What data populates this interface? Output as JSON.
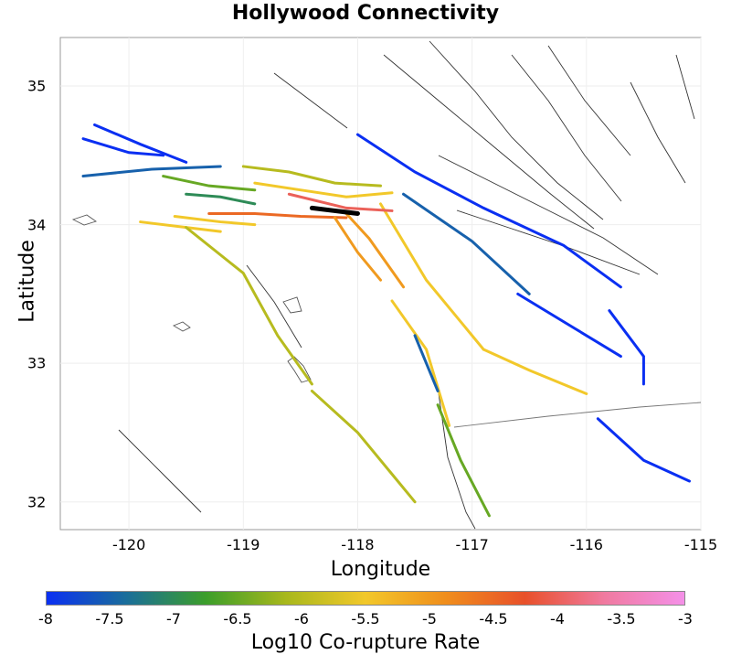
{
  "title": "Hollywood Connectivity",
  "x_label": "Longitude",
  "y_label": "Latitude",
  "x_ticks": [
    "-120",
    "-119",
    "-118",
    "-117",
    "-116",
    "-115"
  ],
  "y_ticks": [
    "35",
    "34",
    "33",
    "32"
  ],
  "colorbar": {
    "label": "Log10 Co-rupture Rate",
    "ticks": [
      "-8",
      "-7.5",
      "-7",
      "-6.5",
      "-6",
      "-5.5",
      "-5",
      "-4.5",
      "-4",
      "-3.5",
      "-3"
    ],
    "colors": [
      "#0a2ff2",
      "#1a6e9a",
      "#3c9e2a",
      "#a8b81c",
      "#f2c82a",
      "#f08e1c",
      "#e8502a",
      "#f07aa0",
      "#f490e8"
    ]
  },
  "map": {
    "lon_range": [
      -120.6,
      -115.0
    ],
    "lat_range": [
      31.8,
      35.35
    ],
    "source_fault": "Hollywood",
    "faults": [
      {
        "lon": [
          -120.3,
          -119.9,
          -119.5
        ],
        "lat": [
          34.72,
          34.58,
          34.45
        ],
        "rate": -8
      },
      {
        "lon": [
          -120.4,
          -120.0,
          -119.7
        ],
        "lat": [
          34.62,
          34.52,
          34.5
        ],
        "rate": -8
      },
      {
        "lon": [
          -120.4,
          -119.8,
          -119.2
        ],
        "lat": [
          34.35,
          34.4,
          34.42
        ],
        "rate": -7.5
      },
      {
        "lon": [
          -119.7,
          -119.3,
          -118.9
        ],
        "lat": [
          34.35,
          34.28,
          34.25
        ],
        "rate": -6.5
      },
      {
        "lon": [
          -119.5,
          -119.2,
          -118.9
        ],
        "lat": [
          34.22,
          34.2,
          34.15
        ],
        "rate": -7
      },
      {
        "lon": [
          -119.0,
          -118.6,
          -118.2,
          -117.8
        ],
        "lat": [
          34.42,
          34.38,
          34.3,
          34.28
        ],
        "rate": -6
      },
      {
        "lon": [
          -118.9,
          -118.5,
          -118.1,
          -117.7
        ],
        "lat": [
          34.3,
          34.25,
          34.2,
          34.23
        ],
        "rate": -5.5
      },
      {
        "lon": [
          -119.3,
          -118.9,
          -118.5,
          -118.1
        ],
        "lat": [
          34.08,
          34.08,
          34.06,
          34.05
        ],
        "rate": -4.5
      },
      {
        "lon": [
          -119.6,
          -119.2,
          -118.9
        ],
        "lat": [
          34.06,
          34.02,
          34.0
        ],
        "rate": -5.5
      },
      {
        "lon": [
          -119.9,
          -119.5,
          -119.2
        ],
        "lat": [
          34.02,
          33.98,
          33.95
        ],
        "rate": -5.5
      },
      {
        "lon": [
          -119.5,
          -119.0,
          -118.7,
          -118.4
        ],
        "lat": [
          33.98,
          33.65,
          33.2,
          32.85
        ],
        "rate": -6
      },
      {
        "lon": [
          -118.4,
          -118.0,
          -117.7,
          -117.5
        ],
        "lat": [
          32.8,
          32.5,
          32.2,
          32.0
        ],
        "rate": -6
      },
      {
        "lon": [
          -118.2,
          -118.0,
          -117.8
        ],
        "lat": [
          34.05,
          33.8,
          33.6
        ],
        "rate": -5
      },
      {
        "lon": [
          -118.1,
          -117.9,
          -117.6
        ],
        "lat": [
          34.08,
          33.9,
          33.55
        ],
        "rate": -5
      },
      {
        "lon": [
          -117.7,
          -117.4,
          -117.2
        ],
        "lat": [
          33.45,
          33.1,
          32.55
        ],
        "rate": -5.5
      },
      {
        "lon": [
          -117.8,
          -117.4,
          -116.9
        ],
        "lat": [
          34.15,
          33.6,
          33.1
        ],
        "rate": -5.5
      },
      {
        "lon": [
          -116.9,
          -116.5,
          -116.0
        ],
        "lat": [
          33.1,
          32.95,
          32.78
        ],
        "rate": -5.5
      },
      {
        "lon": [
          -118.0,
          -117.5,
          -116.9,
          -116.2,
          -115.7
        ],
        "lat": [
          34.65,
          34.38,
          34.12,
          33.85,
          33.55
        ],
        "rate": -8
      },
      {
        "lon": [
          -117.6,
          -117.0,
          -116.5
        ],
        "lat": [
          34.22,
          33.88,
          33.5
        ],
        "rate": -7.5
      },
      {
        "lon": [
          -116.6,
          -116.1,
          -115.7
        ],
        "lat": [
          33.5,
          33.25,
          33.05
        ],
        "rate": -8
      },
      {
        "lon": [
          -115.8,
          -115.5,
          -115.5
        ],
        "lat": [
          33.38,
          33.05,
          32.85
        ],
        "rate": -8
      },
      {
        "lon": [
          -115.9,
          -115.5,
          -115.1
        ],
        "lat": [
          32.6,
          32.3,
          32.15
        ],
        "rate": -8
      },
      {
        "lon": [
          -117.3,
          -117.1,
          -116.85
        ],
        "lat": [
          32.7,
          32.3,
          31.9
        ],
        "rate": -6.5
      },
      {
        "lon": [
          -117.5,
          -117.3
        ],
        "lat": [
          33.2,
          32.8
        ],
        "rate": -7.5
      },
      {
        "lon": [
          -118.6,
          -118.1,
          -117.7
        ],
        "lat": [
          34.22,
          34.12,
          34.1
        ],
        "rate": -4
      },
      {
        "lon": [
          -118.4,
          -118.2,
          -118.0
        ],
        "lat": [
          34.12,
          34.1,
          34.08
        ],
        "rate": -3
      }
    ]
  }
}
